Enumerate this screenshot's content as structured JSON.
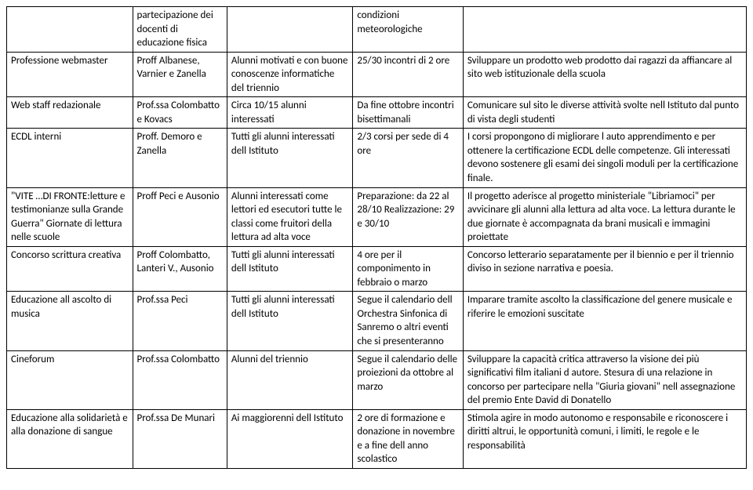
{
  "rows": [
    {
      "a": "",
      "b": "partecipazione dei docenti di educazione fisica",
      "c": "",
      "d": "condizioni meteorologiche",
      "e": ""
    },
    {
      "a": "Professione webmaster",
      "b": "Proff Albanese, Varnier e  Zanella",
      "c": "Alunni motivati e con buone conoscenze informatiche del triennio",
      "d": "25/30 incontri di 2 ore",
      "e": "Sviluppare un prodotto web prodotto dai ragazzi da affiancare al sito web istituzionale della scuola"
    },
    {
      "a": "Web staff redazionale",
      "b": "Prof.ssa Colombatto e Kovacs",
      "c": "Circa 10/15 alunni interessati",
      "d": "Da fine ottobre incontri bisettimanali",
      "e": "Comunicare sul sito le diverse attività svolte nell Istituto dal punto di vista degli studenti"
    },
    {
      "a": "ECDL interni",
      "b": "Proff. Demoro e Zanella",
      "c": "Tutti gli alunni interessati dell Istituto",
      "d": "2/3 corsi per sede di 4 ore",
      "e": "I corsi propongono di migliorare l auto apprendimento e  per  ottenere la certificazione ECDL delle competenze. Gli interessati devono sostenere gli esami dei singoli moduli per la certificazione finale."
    },
    {
      "a": "\"VITE …DI FRONTE:letture e testimonianze sulla Grande Guerra\" Giornate di lettura nelle scuole",
      "b": "Proff Peci e Ausonio",
      "c": "Alunni interessati come lettori ed esecutori tutte le classi come fruitori  della lettura ad alta voce",
      "d": "Preparazione: da 22 al 28/10 Realizzazione: 29 e 30/10",
      "e": "Il progetto aderisce al progetto ministeriale \"Libriamoci\" per avvicinare gli alunni alla lettura ad alta voce. La lettura durante le due giornate è accompagnata da  brani musicali e immagini proiettate"
    },
    {
      "a": "Concorso scrittura creativa",
      "b": "Proff Colombatto, Lanteri V., Ausonio",
      "c": "Tutti gli alunni interessati dell Istituto",
      "d": "4 ore per il componimento in febbraio o marzo",
      "e": "Concorso letterario separatamente per il biennio e per il triennio diviso in sezione narrativa e poesia."
    },
    {
      "a": "Educazione all ascolto di musica",
      "b": "Prof.ssa Peci",
      "c": "Tutti gli alunni interessati dell Istituto",
      "d": "Segue il calendario dell Orchestra Sinfonica di Sanremo o altri eventi che si presenteranno",
      "e": "Imparare tramite ascolto la classificazione del genere musicale e riferire le emozioni suscitate"
    },
    {
      "a": "Cineforum",
      "b": "Prof.ssa Colombatto",
      "c": "Alunni del triennio",
      "d": "Segue il calendario delle proiezioni da ottobre al marzo",
      "e": "Sviluppare la capacità critica attraverso la visione dei più significativi film italiani d autore. Stesura di una relazione in concorso per partecipare nella  \"Giuria giovani\"  nell assegnazione del premio Ente David di Donatello"
    },
    {
      "a": "Educazione alla solidarietà e alla donazione di sangue",
      "b": "Prof.ssa  De Munari",
      "c": "Ai maggiorenni dell Istituto",
      "d": "2 ore di formazione e donazione in novembre e a fine dell anno scolastico",
      "e": "Stimola agire in modo autonomo e responsabile e riconoscere i diritti altrui, le opportunità comuni, i limiti, le regole e le responsabilità"
    }
  ]
}
